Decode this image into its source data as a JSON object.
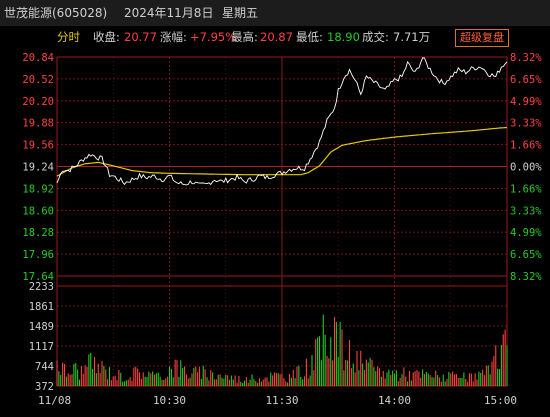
{
  "header": {
    "stock_name": "世茂能源",
    "stock_code": "(605028)",
    "date": "2024年11月8日",
    "weekday": "星期五"
  },
  "info": {
    "mode_label": "分时",
    "close_label": "收盘:",
    "close_value": "20.77",
    "change_label": "涨幅:",
    "change_value": "+7.95%",
    "high_label": "最高:",
    "high_value": "20.87",
    "low_label": "最低:",
    "low_value": "18.90",
    "volume_label": "成交:",
    "volume_value": "7.71万",
    "restore_button": "超级复盘"
  },
  "price_axis": {
    "left_labels": [
      "20.84",
      "20.52",
      "20.20",
      "19.88",
      "19.56",
      "19.24",
      "18.92",
      "18.60",
      "18.28",
      "17.96",
      "17.64"
    ],
    "right_labels": [
      "8.32%",
      "6.65%",
      "4.99%",
      "3.33%",
      "1.66%",
      "0.00%",
      "1.66%",
      "3.33%",
      "4.99%",
      "6.65%",
      "8.32%"
    ],
    "prev_close": 19.24
  },
  "volume_axis": {
    "labels": [
      "2233",
      "1861",
      "1489",
      "1117",
      "744",
      "372"
    ]
  },
  "time_axis": {
    "labels": [
      "11/08",
      "10:30",
      "11:30",
      "14:00",
      "15:00"
    ]
  },
  "colors": {
    "up": "#ff4040",
    "down": "#22cc22",
    "price_line": "#ffffff",
    "avg_line": "#e8c800",
    "grid": "#8b1a1a"
  },
  "chart_data": {
    "type": "line",
    "x_range": [
      0,
      240
    ],
    "price_range": [
      17.64,
      20.84
    ],
    "volume_range": [
      0,
      2233
    ],
    "price_keypoints": [
      [
        0,
        19.0
      ],
      [
        3,
        19.2
      ],
      [
        6,
        19.18
      ],
      [
        10,
        19.25
      ],
      [
        14,
        19.35
      ],
      [
        18,
        19.42
      ],
      [
        21,
        19.38
      ],
      [
        24,
        19.35
      ],
      [
        26,
        19.25
      ],
      [
        28,
        19.12
      ],
      [
        30,
        19.1
      ],
      [
        33,
        19.05
      ],
      [
        36,
        19.0
      ],
      [
        40,
        19.05
      ],
      [
        44,
        19.1
      ],
      [
        48,
        19.08
      ],
      [
        52,
        19.1
      ],
      [
        56,
        19.05
      ],
      [
        60,
        19.1
      ],
      [
        64,
        19.0
      ],
      [
        68,
        18.98
      ],
      [
        72,
        19.02
      ],
      [
        76,
        18.96
      ],
      [
        80,
        18.98
      ],
      [
        84,
        19.05
      ],
      [
        88,
        19.02
      ],
      [
        92,
        19.05
      ],
      [
        96,
        19.08
      ],
      [
        100,
        19.02
      ],
      [
        104,
        19.05
      ],
      [
        108,
        19.1
      ],
      [
        112,
        19.08
      ],
      [
        116,
        19.12
      ],
      [
        120,
        19.15
      ],
      [
        124,
        19.2
      ],
      [
        128,
        19.22
      ],
      [
        132,
        19.22
      ],
      [
        136,
        19.4
      ],
      [
        140,
        19.6
      ],
      [
        144,
        19.9
      ],
      [
        148,
        20.1
      ],
      [
        150,
        20.35
      ],
      [
        153,
        20.55
      ],
      [
        156,
        20.65
      ],
      [
        159,
        20.5
      ],
      [
        162,
        20.3
      ],
      [
        165,
        20.55
      ],
      [
        170,
        20.45
      ],
      [
        175,
        20.35
      ],
      [
        180,
        20.5
      ],
      [
        184,
        20.55
      ],
      [
        187,
        20.75
      ],
      [
        191,
        20.6
      ],
      [
        195,
        20.83
      ],
      [
        198,
        20.7
      ],
      [
        202,
        20.55
      ],
      [
        206,
        20.45
      ],
      [
        210,
        20.55
      ],
      [
        214,
        20.65
      ],
      [
        218,
        20.62
      ],
      [
        222,
        20.68
      ],
      [
        226,
        20.7
      ],
      [
        230,
        20.6
      ],
      [
        234,
        20.55
      ],
      [
        237,
        20.7
      ],
      [
        240,
        20.77
      ]
    ],
    "avg_keypoints": [
      [
        0,
        19.1
      ],
      [
        8,
        19.22
      ],
      [
        15,
        19.28
      ],
      [
        22,
        19.3
      ],
      [
        30,
        19.25
      ],
      [
        40,
        19.18
      ],
      [
        50,
        19.15
      ],
      [
        60,
        19.14
      ],
      [
        80,
        19.13
      ],
      [
        100,
        19.12
      ],
      [
        120,
        19.12
      ],
      [
        130,
        19.12
      ],
      [
        134,
        19.15
      ],
      [
        140,
        19.25
      ],
      [
        146,
        19.45
      ],
      [
        152,
        19.55
      ],
      [
        165,
        19.62
      ],
      [
        180,
        19.67
      ],
      [
        200,
        19.72
      ],
      [
        220,
        19.76
      ],
      [
        235,
        19.8
      ],
      [
        240,
        19.81
      ]
    ],
    "volume_peaks": [
      [
        0,
        900
      ],
      [
        2,
        650
      ],
      [
        5,
        420
      ],
      [
        9,
        560
      ],
      [
        13,
        480
      ],
      [
        18,
        700
      ],
      [
        23,
        620
      ],
      [
        28,
        450
      ],
      [
        36,
        300
      ],
      [
        45,
        500
      ],
      [
        55,
        260
      ],
      [
        62,
        700
      ],
      [
        70,
        450
      ],
      [
        85,
        380
      ],
      [
        100,
        200
      ],
      [
        115,
        340
      ],
      [
        125,
        300
      ],
      [
        133,
        600
      ],
      [
        140,
        1100
      ],
      [
        144,
        1900
      ],
      [
        147,
        2233
      ],
      [
        150,
        1500
      ],
      [
        153,
        1100
      ],
      [
        158,
        900
      ],
      [
        163,
        700
      ],
      [
        170,
        500
      ],
      [
        180,
        420
      ],
      [
        190,
        380
      ],
      [
        200,
        350
      ],
      [
        210,
        300
      ],
      [
        220,
        260
      ],
      [
        232,
        500
      ],
      [
        236,
        1200
      ],
      [
        238,
        1300
      ],
      [
        240,
        1350
      ]
    ]
  }
}
